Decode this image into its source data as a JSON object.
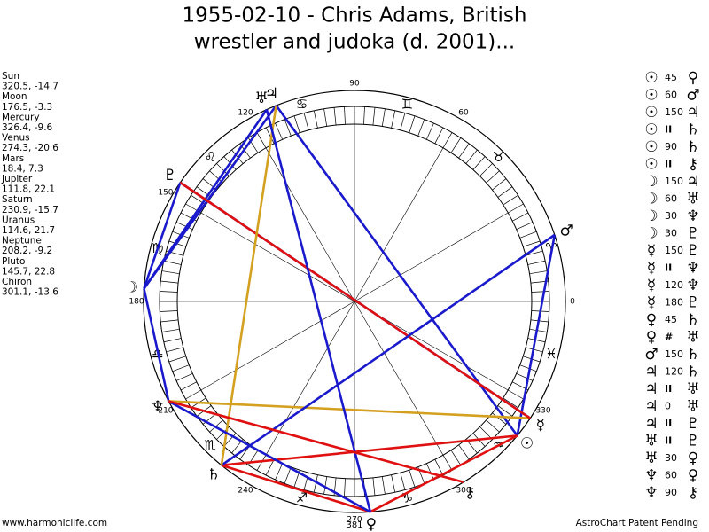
{
  "title": [
    "1955-02-10 - Chris Adams, British",
    "wrestler and judoka (d. 2001)..."
  ],
  "planets": [
    {
      "name": "Sun",
      "coords": "320.5, -14.7",
      "glyph": "☉"
    },
    {
      "name": "Moon",
      "coords": "176.5, -3.3",
      "glyph": "☽"
    },
    {
      "name": "Mercury",
      "coords": "326.4, -9.6",
      "glyph": "☿"
    },
    {
      "name": "Venus",
      "coords": "274.3, -20.6",
      "glyph": "♀"
    },
    {
      "name": "Mars",
      "coords": "18.4, 7.3",
      "glyph": "♂"
    },
    {
      "name": "Jupiter",
      "coords": "111.8, 22.1",
      "glyph": "♃"
    },
    {
      "name": "Saturn",
      "coords": "230.9, -15.7",
      "glyph": "♄"
    },
    {
      "name": "Uranus",
      "coords": "114.6, 21.7",
      "glyph": "♅"
    },
    {
      "name": "Neptune",
      "coords": "208.2, -9.2",
      "glyph": "♆"
    },
    {
      "name": "Pluto",
      "coords": "145.7, 22.8",
      "glyph": "♇"
    },
    {
      "name": "Chiron",
      "coords": "301.1, -13.6",
      "glyph": "⚷"
    }
  ],
  "aspects": [
    {
      "from": "☉",
      "aspect": "45",
      "to": "♀"
    },
    {
      "from": "☉",
      "aspect": "60",
      "to": "♂"
    },
    {
      "from": "☉",
      "aspect": "150",
      "to": "♃"
    },
    {
      "from": "☉",
      "aspect": "II",
      "to": "♄"
    },
    {
      "from": "☉",
      "aspect": "90",
      "to": "♄"
    },
    {
      "from": "☉",
      "aspect": "II",
      "to": "⚷"
    },
    {
      "from": "☽",
      "aspect": "150",
      "to": "♃"
    },
    {
      "from": "☽",
      "aspect": "60",
      "to": "♅"
    },
    {
      "from": "☽",
      "aspect": "30",
      "to": "♆"
    },
    {
      "from": "☽",
      "aspect": "30",
      "to": "♇"
    },
    {
      "from": "☿",
      "aspect": "150",
      "to": "♇"
    },
    {
      "from": "☿",
      "aspect": "II",
      "to": "♆"
    },
    {
      "from": "☿",
      "aspect": "120",
      "to": "♆"
    },
    {
      "from": "☿",
      "aspect": "180",
      "to": "♇"
    },
    {
      "from": "♀",
      "aspect": "45",
      "to": "♄"
    },
    {
      "from": "♀",
      "aspect": "#",
      "to": "♅"
    },
    {
      "from": "♂",
      "aspect": "150",
      "to": "♄"
    },
    {
      "from": "♃",
      "aspect": "120",
      "to": "♄"
    },
    {
      "from": "♃",
      "aspect": "II",
      "to": "♅"
    },
    {
      "from": "♃",
      "aspect": "0",
      "to": "♅"
    },
    {
      "from": "♃",
      "aspect": "II",
      "to": "♇"
    },
    {
      "from": "♅",
      "aspect": "II",
      "to": "♇"
    },
    {
      "from": "♅",
      "aspect": "30",
      "to": "♀"
    },
    {
      "from": "♆",
      "aspect": "60",
      "to": "♀"
    },
    {
      "from": "♆",
      "aspect": "90",
      "to": "⚷"
    }
  ],
  "wheel": {
    "degree_labels": [
      "0",
      "60",
      "90",
      "120",
      "150",
      "180",
      "210",
      "240",
      "270",
      "300",
      "330"
    ],
    "signs": [
      "♈",
      "♉",
      "♊",
      "♋",
      "♌",
      "♍",
      "♎",
      "♏",
      "♐",
      "♑",
      "♒",
      "♓"
    ],
    "extra_label": "381"
  },
  "footer": {
    "left": "www.harmoniclife.com",
    "right": "AstroChart Patent Pending"
  }
}
